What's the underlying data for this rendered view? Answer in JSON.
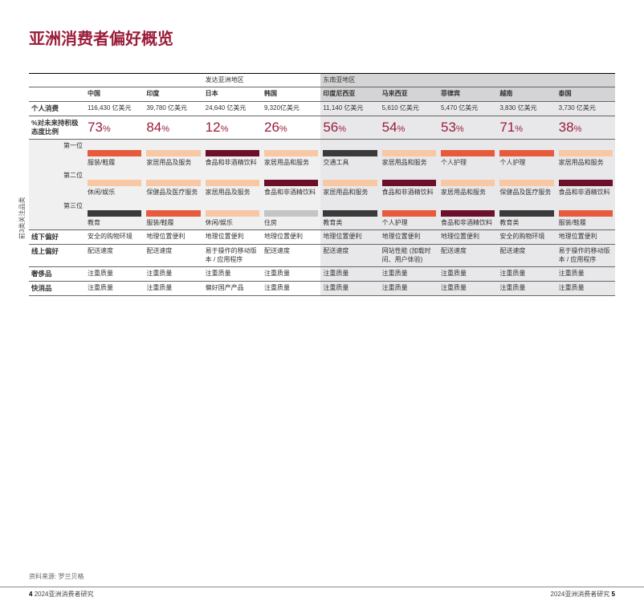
{
  "accent_color": "#9a1d3a",
  "title": "亚洲消费者偏好概览",
  "region_developed": "发达亚洲地区",
  "region_sea": "东南亚地区",
  "countries": [
    "中国",
    "印度",
    "日本",
    "韩国",
    "印度尼西亚",
    "马来西亚",
    "菲律宾",
    "越南",
    "泰国"
  ],
  "rows": {
    "personal_spend": {
      "label": "个人消费",
      "values": [
        "116,430 亿美元",
        "39,780 亿美元",
        "24,640 亿美元",
        "9,320亿美元",
        "11,140 亿美元",
        "5,610 亿美元",
        "5,470 亿美元",
        "3,830 亿美元",
        "3,730 亿美元"
      ]
    },
    "optimism": {
      "label": "%对未来持积极态度比例",
      "values": [
        "73",
        "84",
        "12",
        "26",
        "56",
        "54",
        "53",
        "71",
        "38"
      ]
    }
  },
  "top3_label": "前3类关注品类",
  "ranks": [
    "第一位",
    "第二位",
    "第三位"
  ],
  "top3": [
    {
      "items": [
        {
          "label": "服装/鞋履",
          "color": "#e85a3c"
        },
        {
          "label": "家居用品及服务",
          "color": "#f7c8a3"
        },
        {
          "label": "食品和非酒精饮料",
          "color": "#6b0f2b"
        },
        {
          "label": "家居用品和服务",
          "color": "#f7c8a3"
        },
        {
          "label": "交通工具",
          "color": "#3a3a3a"
        },
        {
          "label": "家居用品和服务",
          "color": "#f7c8a3"
        },
        {
          "label": "个人护理",
          "color": "#e85a3c"
        },
        {
          "label": "个人护理",
          "color": "#e85a3c"
        },
        {
          "label": "家居用品和服务",
          "color": "#f7c8a3"
        }
      ]
    },
    {
      "items": [
        {
          "label": "休闲/娱乐",
          "color": "#f7c8a3"
        },
        {
          "label": "保健品及医疗服务",
          "color": "#f7c8a3"
        },
        {
          "label": "家居用品及服务",
          "color": "#f7c8a3"
        },
        {
          "label": "食品和非酒精饮料",
          "color": "#6b0f2b"
        },
        {
          "label": "家居用品和服务",
          "color": "#f7c8a3"
        },
        {
          "label": "食品和非酒精饮料",
          "color": "#6b0f2b"
        },
        {
          "label": "家居用品和服务",
          "color": "#f7c8a3"
        },
        {
          "label": "保健品及医疗服务",
          "color": "#f7c8a3"
        },
        {
          "label": "食品和非酒精饮料",
          "color": "#6b0f2b"
        }
      ]
    },
    {
      "items": [
        {
          "label": "教育",
          "color": "#3a3a3a"
        },
        {
          "label": "服装/鞋履",
          "color": "#e85a3c"
        },
        {
          "label": "休闲/娱乐",
          "color": "#f7c8a3"
        },
        {
          "label": "住房",
          "color": "#c4c4c4"
        },
        {
          "label": "教育类",
          "color": "#3a3a3a"
        },
        {
          "label": "个人护理",
          "color": "#e85a3c"
        },
        {
          "label": "食品和非酒精饮料",
          "color": "#6b0f2b"
        },
        {
          "label": "教育类",
          "color": "#3a3a3a"
        },
        {
          "label": "服装/鞋履",
          "color": "#e85a3c"
        }
      ]
    }
  ],
  "offline": {
    "label": "线下偏好",
    "values": [
      "安全的购物环境",
      "地理位置便利",
      "地理位置便利",
      "地理位置便利",
      "地理位置便利",
      "地理位置便利",
      "地理位置便利",
      "安全的购物环境",
      "地理位置便利"
    ]
  },
  "online": {
    "label": "线上偏好",
    "values": [
      "配送速度",
      "配送速度",
      "易于操作的移动版本 / 应用程序",
      "配送速度",
      "配送速度",
      "网站性能 (加载时间、用户体验)",
      "配送速度",
      "配送速度",
      "易于操作的移动版本 / 应用程序"
    ]
  },
  "luxury": {
    "label": "奢侈品",
    "values": [
      "注重质量",
      "注重质量",
      "注重质量",
      "注重质量",
      "注重质量",
      "注重质量",
      "注重质量",
      "注重质量",
      "注重质量"
    ]
  },
  "fmcg": {
    "label": "快消品",
    "values": [
      "注重质量",
      "注重质量",
      "偏好国产产品",
      "注重质量",
      "注重质量",
      "注重质量",
      "注重质量",
      "注重质量",
      "注重质量"
    ]
  },
  "source": "资料来源: 罗兰贝格",
  "footer_study": "2024亚洲消费者研究",
  "page_left": "4",
  "page_right": "5"
}
